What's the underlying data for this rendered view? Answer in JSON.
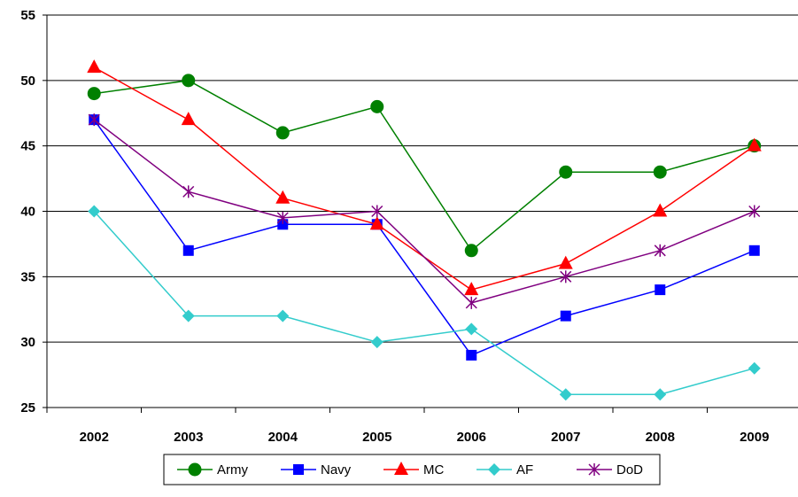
{
  "chart_data": {
    "type": "line",
    "categories": [
      "2002",
      "2003",
      "2004",
      "2005",
      "2006",
      "2007",
      "2008",
      "2009"
    ],
    "ylim": [
      25,
      55
    ],
    "yticks": [
      25,
      30,
      35,
      40,
      45,
      50,
      55
    ],
    "grid": true,
    "legend_position": "bottom",
    "series": [
      {
        "name": "Army",
        "color": "#008000",
        "marker": "circle",
        "values": [
          49,
          50,
          46,
          48,
          37,
          43,
          43,
          45
        ]
      },
      {
        "name": "Navy",
        "color": "#0000FF",
        "marker": "square",
        "values": [
          47,
          37,
          39,
          39,
          29,
          32,
          34,
          37
        ]
      },
      {
        "name": "MC",
        "color": "#FF0000",
        "marker": "triangle",
        "values": [
          51,
          47,
          41,
          39,
          34,
          36,
          40,
          45
        ]
      },
      {
        "name": "AF",
        "color": "#33CCCC",
        "marker": "diamond",
        "values": [
          40,
          32,
          32,
          30,
          31,
          26,
          26,
          28
        ]
      },
      {
        "name": "DoD",
        "color": "#800080",
        "marker": "star",
        "values": [
          47,
          41.5,
          39.5,
          40,
          33,
          35,
          37,
          40
        ]
      }
    ]
  }
}
